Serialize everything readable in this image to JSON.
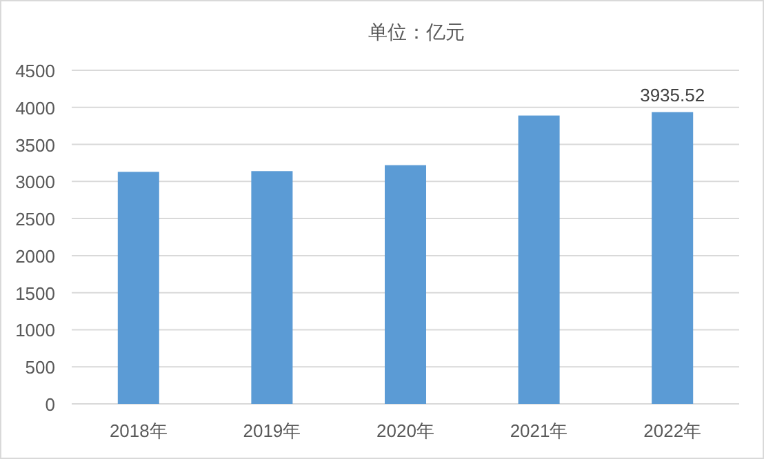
{
  "chart_data": {
    "type": "bar",
    "title": "单位：亿元",
    "categories": [
      "2018年",
      "2019年",
      "2020年",
      "2021年",
      "2022年"
    ],
    "values": [
      3130,
      3140,
      3220,
      3890,
      3935.52
    ],
    "value_labels": [
      null,
      null,
      null,
      null,
      "3935.52"
    ],
    "color": "#5b9bd5",
    "ylim": [
      0,
      4500
    ],
    "yticks": [
      0,
      500,
      1000,
      1500,
      2000,
      2500,
      3000,
      3500,
      4000,
      4500
    ],
    "grid": "y"
  }
}
